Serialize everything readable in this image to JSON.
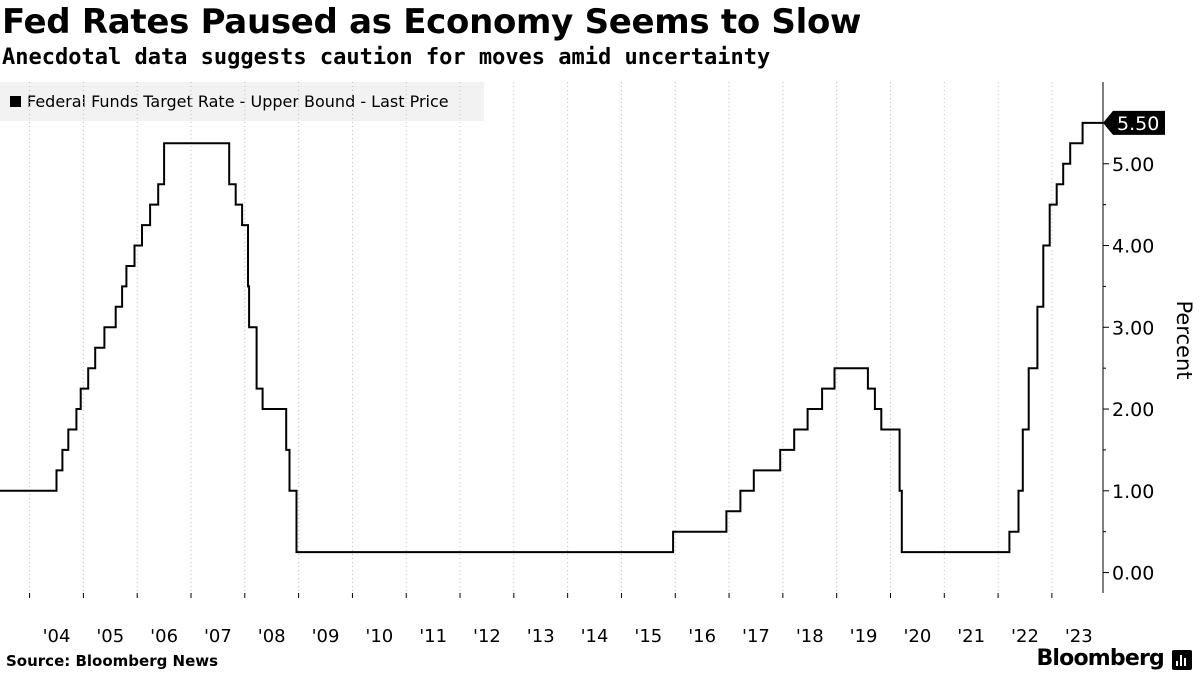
{
  "header": {
    "title": "Fed Rates Paused as Economy Seems to Slow",
    "subtitle": "Anecdotal data suggests caution for moves amid uncertainty"
  },
  "footer": {
    "source": "Source: Bloomberg News",
    "brand": "Bloomberg"
  },
  "colors": {
    "line": "#000000",
    "grid": "#bdbdbd",
    "legend_bg": "#f2f2f2",
    "last_price_tag": "#000000"
  },
  "chart_data": {
    "type": "line",
    "title": "Fed Rates Paused as Economy Seems to Slow",
    "subtitle": "Anecdotal data suggests caution for moves amid uncertainty",
    "ylabel": "Percent",
    "ylim": [
      -0.25,
      6.0
    ],
    "xlim": [
      2003.45,
      2023.95
    ],
    "y_ticks": [
      "0.00",
      "1.00",
      "2.00",
      "3.00",
      "4.00",
      "5.00"
    ],
    "x_tick_labels": [
      "'04",
      "'05",
      "'06",
      "'07",
      "'08",
      "'09",
      "'10",
      "'11",
      "'12",
      "'13",
      "'14",
      "'15",
      "'16",
      "'17",
      "'18",
      "'19",
      "'20",
      "'21",
      "'22",
      "'23"
    ],
    "grid": "vertical dotted at year boundaries",
    "legend_position": "top-left",
    "last_value_label": "5.50",
    "series": [
      {
        "name": "Federal Funds Target Rate - Upper Bound - Last Price",
        "step": true,
        "points": [
          [
            2003.45,
            1.0
          ],
          [
            2004.5,
            1.25
          ],
          [
            2004.61,
            1.5
          ],
          [
            2004.72,
            1.75
          ],
          [
            2004.87,
            2.0
          ],
          [
            2004.95,
            2.25
          ],
          [
            2005.09,
            2.5
          ],
          [
            2005.22,
            2.75
          ],
          [
            2005.39,
            3.0
          ],
          [
            2005.6,
            3.25
          ],
          [
            2005.72,
            3.5
          ],
          [
            2005.8,
            3.75
          ],
          [
            2005.95,
            4.0
          ],
          [
            2006.09,
            4.25
          ],
          [
            2006.24,
            4.5
          ],
          [
            2006.39,
            4.75
          ],
          [
            2006.5,
            5.25
          ],
          [
            2007.71,
            4.75
          ],
          [
            2007.83,
            4.5
          ],
          [
            2007.95,
            4.25
          ],
          [
            2008.06,
            3.5
          ],
          [
            2008.08,
            3.0
          ],
          [
            2008.22,
            2.25
          ],
          [
            2008.33,
            2.0
          ],
          [
            2008.77,
            1.5
          ],
          [
            2008.83,
            1.0
          ],
          [
            2008.96,
            0.25
          ],
          [
            2015.96,
            0.5
          ],
          [
            2016.95,
            0.75
          ],
          [
            2017.21,
            1.0
          ],
          [
            2017.46,
            1.25
          ],
          [
            2017.95,
            1.5
          ],
          [
            2018.21,
            1.75
          ],
          [
            2018.46,
            2.0
          ],
          [
            2018.73,
            2.25
          ],
          [
            2018.96,
            2.5
          ],
          [
            2019.58,
            2.25
          ],
          [
            2019.71,
            2.0
          ],
          [
            2019.83,
            1.75
          ],
          [
            2020.17,
            1.0
          ],
          [
            2020.21,
            0.25
          ],
          [
            2022.21,
            0.5
          ],
          [
            2022.38,
            1.0
          ],
          [
            2022.46,
            1.75
          ],
          [
            2022.57,
            2.5
          ],
          [
            2022.73,
            3.25
          ],
          [
            2022.84,
            4.0
          ],
          [
            2022.96,
            4.5
          ],
          [
            2023.09,
            4.75
          ],
          [
            2023.21,
            5.0
          ],
          [
            2023.34,
            5.25
          ],
          [
            2023.57,
            5.5
          ],
          [
            2023.95,
            5.5
          ]
        ]
      }
    ]
  }
}
